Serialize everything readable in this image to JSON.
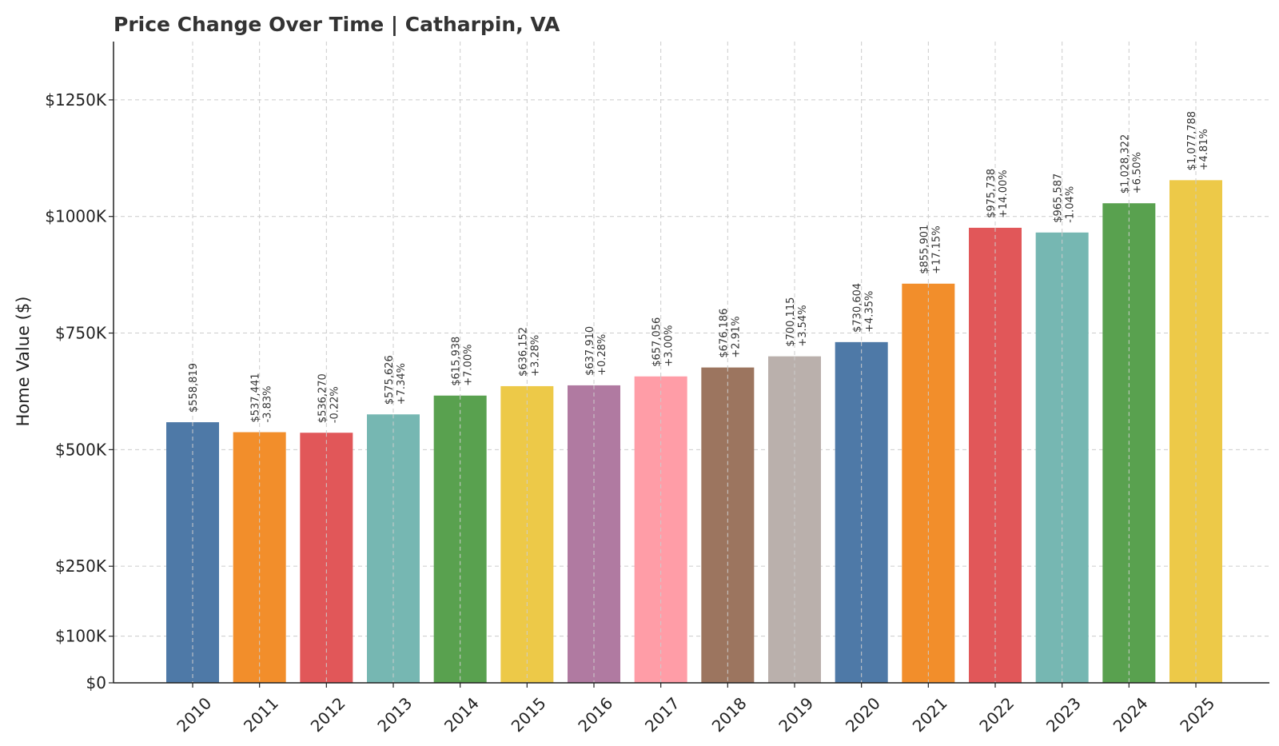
{
  "chart_data": {
    "type": "bar",
    "title": "Price Change Over Time | Catharpin, VA",
    "xlabel": "",
    "ylabel": "Home Value ($)",
    "ylim": [
      0,
      1375000
    ],
    "yticks": [
      0,
      100000,
      250000,
      500000,
      750000,
      1000000,
      1250000
    ],
    "ytick_labels": [
      "$0",
      "$100K",
      "$250K",
      "$500K",
      "$750K",
      "$1000K",
      "$1250K"
    ],
    "grid": true,
    "categories": [
      "2010",
      "2011",
      "2012",
      "2013",
      "2014",
      "2015",
      "2016",
      "2017",
      "2018",
      "2019",
      "2020",
      "2021",
      "2022",
      "2023",
      "2024",
      "2025"
    ],
    "values": [
      558819,
      537441,
      536270,
      575626,
      615938,
      636152,
      637910,
      657056,
      676186,
      700115,
      730604,
      855901,
      975738,
      965587,
      1028322,
      1077788
    ],
    "value_labels": [
      "$558,819",
      "$537,441",
      "$536,270",
      "$575,626",
      "$615,938",
      "$636,152",
      "$637,910",
      "$657,056",
      "$676,186",
      "$700,115",
      "$730,604",
      "$855,901",
      "$975,738",
      "$965,587",
      "$1,028,322",
      "$1,077,788"
    ],
    "change_labels": [
      "",
      "-3.83%",
      "-0.22%",
      "+7.34%",
      "+7.00%",
      "+3.28%",
      "+0.28%",
      "+3.00%",
      "+2.91%",
      "+3.54%",
      "+4.35%",
      "+17.15%",
      "+14.00%",
      "-1.04%",
      "+6.50%",
      "+4.81%"
    ],
    "colors": [
      "#4e79a7",
      "#f28e2b",
      "#e15759",
      "#76b7b2",
      "#59a14f",
      "#edc948",
      "#b07aa1",
      "#ff9da7",
      "#9c755f",
      "#bab0ac",
      "#4e79a7",
      "#f28e2b",
      "#e15759",
      "#76b7b2",
      "#59a14f",
      "#edc948"
    ]
  }
}
